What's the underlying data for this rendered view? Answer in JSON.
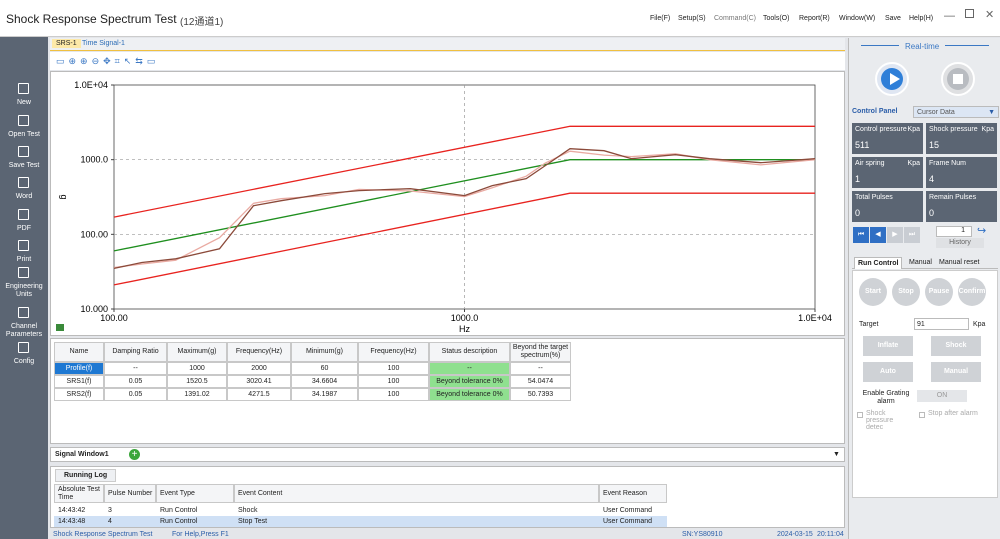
{
  "header": {
    "title": "Shock Response Spectrum Test",
    "subtitle": "(12通道1)"
  },
  "menu": [
    "File(F)",
    "Setup(S)",
    "Command(C)",
    "Tools(O)",
    "Report(R)",
    "Window(W)",
    "Save",
    "Help(H)"
  ],
  "sidebar": [
    "New",
    "Open Test",
    "Save Test",
    "Word",
    "PDF",
    "Print",
    "Engineering Units",
    "Channel Parameters",
    "Config"
  ],
  "tabs": [
    "SRS-1",
    "Time Signal-1"
  ],
  "chart_data": {
    "type": "line",
    "xlabel": "Hz",
    "ylabel": "g",
    "xscale": "log",
    "yscale": "log",
    "grid": true,
    "xlim": [
      100,
      10000
    ],
    "ylim": [
      10,
      10000
    ],
    "xticks": [
      {
        "value": 100,
        "label": "100.00"
      },
      {
        "value": 1000,
        "label": "1000.0"
      },
      {
        "value": 10000,
        "label": "1.0E+04"
      }
    ],
    "yticks": [
      {
        "value": 10,
        "label": "10.000"
      },
      {
        "value": 100,
        "label": "100.00"
      },
      {
        "value": 1000,
        "label": "1000.0"
      },
      {
        "value": 10000,
        "label": "1.0E+04"
      }
    ],
    "series": [
      {
        "color": "#e8231f",
        "x": [
          100,
          2000,
          10000
        ],
        "values": [
          170,
          2800,
          2800
        ]
      },
      {
        "color": "#e8231f",
        "x": [
          100,
          2000,
          10000
        ],
        "values": [
          21,
          355,
          355
        ]
      },
      {
        "color": "#1f8f1f",
        "x": [
          100,
          2000,
          10000
        ],
        "values": [
          60,
          1000,
          1000
        ]
      },
      {
        "color": "#e9aaa2",
        "x": [
          100,
          120,
          150,
          200,
          250,
          300,
          400,
          500,
          700,
          1000,
          1200,
          1500,
          1700,
          2000,
          2500,
          3000,
          4000,
          5000,
          7000,
          10000
        ],
        "values": [
          36,
          40,
          45,
          90,
          260,
          300,
          330,
          400,
          380,
          320,
          420,
          600,
          900,
          1300,
          1150,
          1100,
          1200,
          1000,
          850,
          1000
        ]
      },
      {
        "color": "#8b4a3a",
        "x": [
          100,
          120,
          150,
          200,
          250,
          300,
          400,
          500,
          700,
          1000,
          1200,
          1500,
          1700,
          2000,
          2500,
          3000,
          4000,
          5000,
          7000,
          10000
        ],
        "values": [
          35,
          42,
          47,
          64,
          242,
          282,
          351,
          385,
          409,
          330,
          449,
          557,
          832,
          1403,
          1320,
          1031,
          1166,
          1031,
          912,
          1031
        ]
      }
    ]
  },
  "results_table": {
    "columns": [
      "Name",
      "Damping Ratio",
      "Maximum(g)",
      "Frequency(Hz)",
      "Minimum(g)",
      "Frequency(Hz)",
      "Status description",
      "Beyond the target spectrum(%)"
    ],
    "rows": [
      [
        "Profile(f)",
        "--",
        "1000",
        "2000",
        "60",
        "100",
        "--",
        "--"
      ],
      [
        "SRS1(f)",
        "0.05",
        "1520.5",
        "3020.41",
        "34.6604",
        "100",
        "Beyond tolerance 0%",
        "54.0474"
      ],
      [
        "SRS2(f)",
        "0.05",
        "1391.02",
        "4271.5",
        "34.1987",
        "100",
        "Beyond tolerance 0%",
        "50.7393"
      ]
    ]
  },
  "signal_window": "Signal Window1",
  "running_log": {
    "tab": "Running Log",
    "columns": [
      "Absolute Test Time",
      "Pulse Number",
      "Event Type",
      "Event Content",
      "Event Reason"
    ],
    "rows": [
      [
        "14:43:42",
        "3",
        "Run Control",
        "Shock",
        "User Command"
      ],
      [
        "14:43:48",
        "4",
        "Run Control",
        "Stop Test",
        "User Command"
      ]
    ]
  },
  "status_bar": [
    "Shock Response Spectrum Test",
    "For Help,Press F1",
    "SN:YS80910",
    "2024-03-15",
    "20:11:04"
  ],
  "panel": {
    "title": "Real-time",
    "control_panel": "Control Panel",
    "cursor_select": "Cursor Data",
    "readouts": [
      {
        "label": "Control pressure",
        "unit": "Kpa",
        "value": "511"
      },
      {
        "label": "Shock pressure",
        "unit": "Kpa",
        "value": "15"
      },
      {
        "label": "Air spring",
        "unit": "Kpa",
        "value": "1"
      },
      {
        "label": "Frame Num",
        "value": "4"
      },
      {
        "label": "Total Pulses",
        "value": "0"
      },
      {
        "label": "Remain Pulses",
        "value": "0"
      }
    ],
    "step": "1",
    "history": "History",
    "tabs": [
      "Run Control",
      "Manual",
      "Manual reset"
    ],
    "round_buttons": [
      "Start",
      "Stop",
      "Pause",
      "Confirm"
    ],
    "target_label": "Target",
    "target_value": "91",
    "target_unit": "Kpa",
    "buttons": [
      "Inflate",
      "Shock",
      "Auto",
      "Manual"
    ],
    "alarm_label": "Enable Grating alarm",
    "alarm_state": "ON",
    "checks": [
      "Shock pressure detec",
      "Stop after alarm"
    ]
  }
}
